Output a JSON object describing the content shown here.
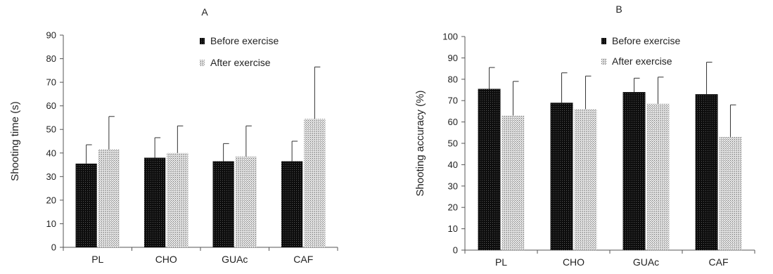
{
  "colors": {
    "before_fill": "#1a1a1a",
    "after_fill": "#bdbdbd",
    "axis": "#555555",
    "error_bar": "#333333"
  },
  "chart_data": [
    {
      "type": "bar",
      "title": "A",
      "ylabel": "Shooting time (s)",
      "xlabel": "",
      "ylim": [
        0,
        90
      ],
      "yticks": [
        0,
        10,
        20,
        30,
        40,
        50,
        60,
        70,
        80,
        90
      ],
      "grid": false,
      "legend_position": "top-right",
      "categories": [
        "PL",
        "CHO",
        "GUAc",
        "CAF"
      ],
      "series": [
        {
          "name": "Before exercise",
          "values": [
            35.5,
            38,
            36.5,
            36.5
          ],
          "error": [
            8,
            8.5,
            7.5,
            8.5
          ]
        },
        {
          "name": "After exercise",
          "values": [
            41.5,
            40,
            38.5,
            54.5
          ],
          "error": [
            14,
            11.5,
            13,
            22
          ]
        }
      ]
    },
    {
      "type": "bar",
      "title": "B",
      "ylabel": "Shooting accuracy (%)",
      "xlabel": "",
      "ylim": [
        0,
        100
      ],
      "yticks": [
        0,
        10,
        20,
        30,
        40,
        50,
        60,
        70,
        80,
        90,
        100
      ],
      "grid": false,
      "legend_position": "top-right",
      "categories": [
        "PL",
        "CHO",
        "GUAc",
        "CAF"
      ],
      "series": [
        {
          "name": "Before exercise",
          "values": [
            75.5,
            69,
            74,
            73
          ],
          "error": [
            10,
            14,
            6.5,
            15
          ]
        },
        {
          "name": "After exercise",
          "values": [
            63,
            66,
            68.5,
            53
          ],
          "error": [
            16,
            15.5,
            12.5,
            15
          ]
        }
      ]
    }
  ]
}
